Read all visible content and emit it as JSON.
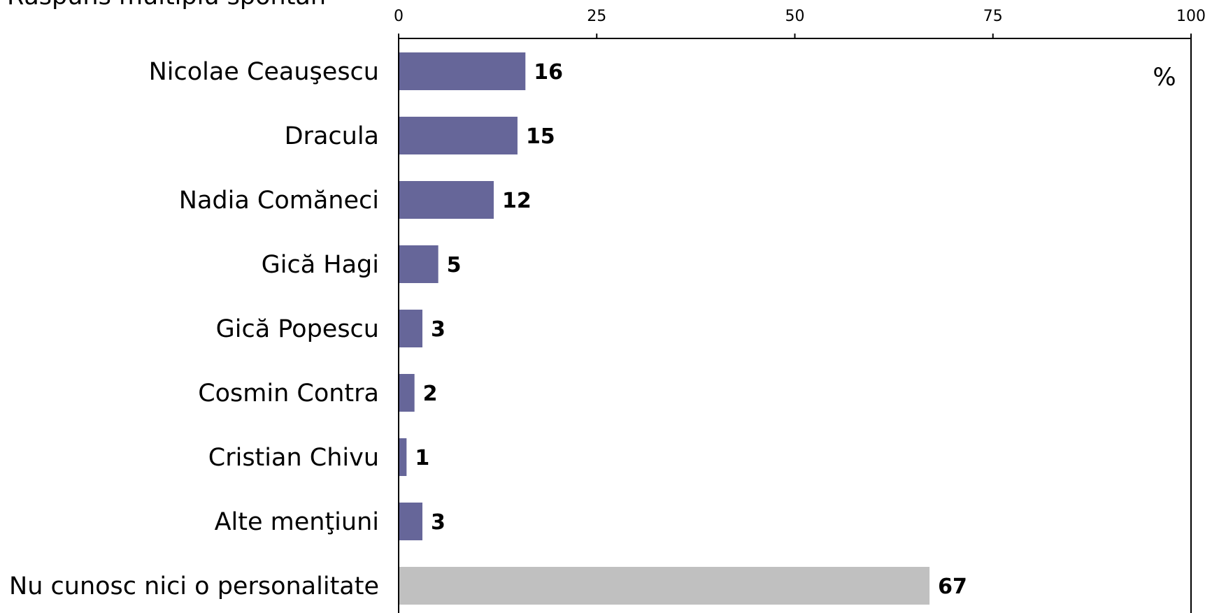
{
  "chart_data": {
    "type": "bar",
    "orientation": "horizontal",
    "note": "Răspuns multiplu spontan",
    "unit_label": "%",
    "xlim": [
      0,
      100
    ],
    "xticks": [
      0,
      25,
      50,
      75,
      100
    ],
    "categories": [
      "Nicolae Ceauşescu",
      "Dracula",
      "Nadia Comăneci",
      "Gică Hagi",
      "Gică Popescu",
      "Cosmin Contra",
      "Cristian Chivu",
      "Alte menţiuni",
      "Nu cunosc nici o personalitate"
    ],
    "values": [
      16,
      15,
      12,
      5,
      3,
      2,
      1,
      3,
      67
    ],
    "bar_colors": [
      "#666699",
      "#666699",
      "#666699",
      "#666699",
      "#666699",
      "#666699",
      "#666699",
      "#666699",
      "#c0c0c0"
    ],
    "grid": false
  }
}
